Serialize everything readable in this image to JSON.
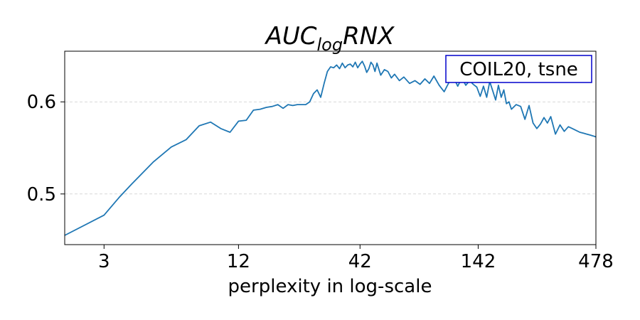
{
  "chart_data": {
    "type": "line",
    "title": {
      "main": "AUC",
      "subscript": "log",
      "suffix": "RNX"
    },
    "xlabel": "perplexity in log-scale",
    "ylabel": "",
    "x_scale": "log",
    "xlim": [
      2,
      478
    ],
    "ylim": [
      0.445,
      0.655
    ],
    "x_ticks": [
      3,
      12,
      42,
      142,
      478
    ],
    "y_ticks": [
      0.5,
      0.6
    ],
    "y_tick_labels": [
      "0.5",
      "0.6"
    ],
    "grid": "horizontal-dashed",
    "legend_placement": "top-right",
    "annotation": "COIL20, tsne",
    "line_color": "#1f77b4",
    "annotation_border_color": "#0000cc",
    "series": [
      {
        "x": [
          2,
          3,
          3.5,
          4,
          5,
          6,
          7,
          8,
          9,
          10,
          11,
          12,
          13,
          14,
          15,
          16,
          17,
          18,
          19,
          20,
          21,
          22,
          23,
          24,
          25,
          26,
          27,
          28,
          29,
          30,
          31,
          32,
          33,
          34,
          35,
          36,
          37,
          38,
          39,
          40,
          41,
          42,
          43,
          44,
          45,
          46,
          47,
          48,
          49,
          50,
          52,
          54,
          56,
          58,
          60,
          63,
          66,
          70,
          74,
          78,
          82,
          86,
          90,
          95,
          100,
          105,
          110,
          115,
          120,
          125,
          130,
          135,
          140,
          145,
          150,
          155,
          160,
          165,
          170,
          175,
          180,
          185,
          190,
          195,
          200,
          210,
          220,
          230,
          240,
          250,
          260,
          270,
          280,
          290,
          300,
          315,
          330,
          345,
          360,
          375,
          390,
          405,
          420,
          435,
          450,
          465,
          478
        ],
        "y": [
          0.455,
          0.477,
          0.496,
          0.511,
          0.535,
          0.551,
          0.559,
          0.574,
          0.578,
          0.571,
          0.567,
          0.579,
          0.58,
          0.591,
          0.592,
          0.594,
          0.595,
          0.597,
          0.593,
          0.597,
          0.596,
          0.597,
          0.597,
          0.597,
          0.6,
          0.609,
          0.613,
          0.605,
          0.62,
          0.633,
          0.638,
          0.637,
          0.64,
          0.636,
          0.642,
          0.637,
          0.64,
          0.641,
          0.638,
          0.643,
          0.637,
          0.641,
          0.644,
          0.639,
          0.632,
          0.636,
          0.643,
          0.64,
          0.633,
          0.642,
          0.629,
          0.635,
          0.633,
          0.626,
          0.63,
          0.623,
          0.627,
          0.62,
          0.623,
          0.619,
          0.625,
          0.62,
          0.628,
          0.618,
          0.611,
          0.621,
          0.627,
          0.617,
          0.626,
          0.618,
          0.623,
          0.619,
          0.616,
          0.606,
          0.617,
          0.605,
          0.622,
          0.612,
          0.602,
          0.618,
          0.605,
          0.613,
          0.598,
          0.6,
          0.592,
          0.597,
          0.595,
          0.581,
          0.596,
          0.577,
          0.571,
          0.576,
          0.583,
          0.577,
          0.584,
          0.565,
          0.575,
          0.568,
          0.573,
          0.571,
          0.569,
          0.567,
          0.566,
          0.565,
          0.564,
          0.563,
          0.562
        ]
      }
    ]
  }
}
